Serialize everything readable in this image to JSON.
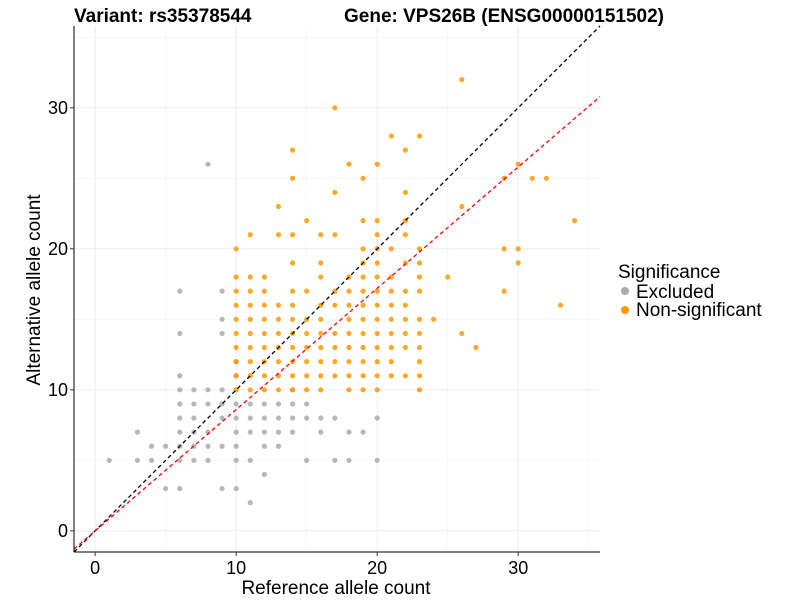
{
  "chart_data": {
    "type": "scatter",
    "title_left": "Variant: rs35378544",
    "title_right": "Gene: VPS26B (ENSG00000151502)",
    "xlabel": "Reference allele count",
    "ylabel": "Alternative allele count",
    "xlim": [
      -1.5,
      35.8
    ],
    "ylim": [
      -1.5,
      35.8
    ],
    "x_ticks": [
      0,
      10,
      20,
      30
    ],
    "y_ticks": [
      0,
      10,
      20,
      30
    ],
    "grid": true,
    "legend": {
      "title": "Significance",
      "position": "right",
      "entries": [
        {
          "label": "Excluded",
          "color": "#aaaaaa"
        },
        {
          "label": "Non-significant",
          "color": "#ff9900"
        }
      ]
    },
    "reference_lines": [
      {
        "name": "identity",
        "slope": 1.0,
        "intercept": 0,
        "color": "#000000",
        "style": "dashed"
      },
      {
        "name": "fit",
        "slope": 0.86,
        "intercept": 0,
        "color": "#ff0000",
        "style": "dashed"
      }
    ],
    "series": [
      {
        "name": "Excluded",
        "color": "#aaaaaa",
        "points": [
          [
            1,
            5
          ],
          [
            3,
            7
          ],
          [
            3,
            5
          ],
          [
            4,
            6
          ],
          [
            4,
            5
          ],
          [
            5,
            6
          ],
          [
            5,
            3
          ],
          [
            6,
            17
          ],
          [
            6,
            14
          ],
          [
            6,
            11
          ],
          [
            6,
            10
          ],
          [
            6,
            9
          ],
          [
            6,
            8
          ],
          [
            6,
            7
          ],
          [
            6,
            6
          ],
          [
            6,
            5
          ],
          [
            6,
            3
          ],
          [
            7,
            10
          ],
          [
            7,
            9
          ],
          [
            7,
            8
          ],
          [
            7,
            7
          ],
          [
            7,
            6
          ],
          [
            7,
            5
          ],
          [
            8,
            26
          ],
          [
            8,
            10
          ],
          [
            8,
            9
          ],
          [
            8,
            7
          ],
          [
            8,
            6
          ],
          [
            8,
            5
          ],
          [
            9,
            17
          ],
          [
            9,
            15
          ],
          [
            9,
            14
          ],
          [
            9,
            10
          ],
          [
            9,
            9
          ],
          [
            9,
            8
          ],
          [
            9,
            6
          ],
          [
            9,
            3
          ],
          [
            10,
            12
          ],
          [
            10,
            11
          ],
          [
            10,
            9
          ],
          [
            10,
            8
          ],
          [
            10,
            7
          ],
          [
            10,
            6
          ],
          [
            10,
            5
          ],
          [
            10,
            3
          ],
          [
            11,
            9
          ],
          [
            11,
            8
          ],
          [
            11,
            7
          ],
          [
            11,
            5
          ],
          [
            11,
            2
          ],
          [
            12,
            9
          ],
          [
            12,
            8
          ],
          [
            12,
            7
          ],
          [
            12,
            6
          ],
          [
            12,
            4
          ],
          [
            13,
            9
          ],
          [
            13,
            8
          ],
          [
            13,
            7
          ],
          [
            13,
            6
          ],
          [
            14,
            10
          ],
          [
            14,
            9
          ],
          [
            14,
            8
          ],
          [
            14,
            7
          ],
          [
            15,
            9
          ],
          [
            15,
            8
          ],
          [
            15,
            5
          ],
          [
            16,
            8
          ],
          [
            16,
            7
          ],
          [
            17,
            8
          ],
          [
            17,
            5
          ],
          [
            18,
            7
          ],
          [
            18,
            5
          ],
          [
            19,
            7
          ],
          [
            20,
            8
          ],
          [
            20,
            5
          ]
        ]
      },
      {
        "name": "Non-significant",
        "color": "#ff9900",
        "points": [
          [
            10,
            20
          ],
          [
            10,
            18
          ],
          [
            10,
            17
          ],
          [
            10,
            16
          ],
          [
            10,
            15
          ],
          [
            10,
            14
          ],
          [
            10,
            13
          ],
          [
            10,
            12
          ],
          [
            10,
            11
          ],
          [
            10,
            10
          ],
          [
            11,
            21
          ],
          [
            11,
            18
          ],
          [
            11,
            17
          ],
          [
            11,
            16
          ],
          [
            11,
            15
          ],
          [
            11,
            14
          ],
          [
            11,
            13
          ],
          [
            11,
            12
          ],
          [
            11,
            11
          ],
          [
            11,
            10
          ],
          [
            12,
            18
          ],
          [
            12,
            17
          ],
          [
            12,
            16
          ],
          [
            12,
            15
          ],
          [
            12,
            14
          ],
          [
            12,
            13
          ],
          [
            12,
            12
          ],
          [
            12,
            11
          ],
          [
            12,
            10
          ],
          [
            13,
            23
          ],
          [
            13,
            21
          ],
          [
            13,
            16
          ],
          [
            13,
            15
          ],
          [
            13,
            14
          ],
          [
            13,
            13
          ],
          [
            13,
            12
          ],
          [
            13,
            11
          ],
          [
            13,
            10
          ],
          [
            14,
            27
          ],
          [
            14,
            25
          ],
          [
            14,
            21
          ],
          [
            14,
            19
          ],
          [
            14,
            17
          ],
          [
            14,
            16
          ],
          [
            14,
            15
          ],
          [
            14,
            14
          ],
          [
            14,
            13
          ],
          [
            14,
            12
          ],
          [
            14,
            11
          ],
          [
            14,
            10
          ],
          [
            15,
            22
          ],
          [
            15,
            17
          ],
          [
            15,
            15
          ],
          [
            15,
            14
          ],
          [
            15,
            13
          ],
          [
            15,
            12
          ],
          [
            15,
            11
          ],
          [
            15,
            10
          ],
          [
            16,
            21
          ],
          [
            16,
            19
          ],
          [
            16,
            18
          ],
          [
            16,
            16
          ],
          [
            16,
            15
          ],
          [
            16,
            14
          ],
          [
            16,
            13
          ],
          [
            16,
            12
          ],
          [
            16,
            11
          ],
          [
            16,
            10
          ],
          [
            17,
            30
          ],
          [
            17,
            24
          ],
          [
            17,
            21
          ],
          [
            17,
            17
          ],
          [
            17,
            16
          ],
          [
            17,
            14
          ],
          [
            17,
            13
          ],
          [
            17,
            12
          ],
          [
            17,
            11
          ],
          [
            18,
            26
          ],
          [
            18,
            18
          ],
          [
            18,
            17
          ],
          [
            18,
            16
          ],
          [
            18,
            15
          ],
          [
            18,
            14
          ],
          [
            18,
            13
          ],
          [
            18,
            12
          ],
          [
            18,
            11
          ],
          [
            18,
            10
          ],
          [
            19,
            25
          ],
          [
            19,
            22
          ],
          [
            19,
            20
          ],
          [
            19,
            19
          ],
          [
            19,
            18
          ],
          [
            19,
            17
          ],
          [
            19,
            16
          ],
          [
            19,
            15
          ],
          [
            19,
            14
          ],
          [
            19,
            13
          ],
          [
            19,
            12
          ],
          [
            19,
            11
          ],
          [
            19,
            10
          ],
          [
            20,
            26
          ],
          [
            20,
            22
          ],
          [
            20,
            21
          ],
          [
            20,
            20
          ],
          [
            20,
            19
          ],
          [
            20,
            18
          ],
          [
            20,
            17
          ],
          [
            20,
            16
          ],
          [
            20,
            15
          ],
          [
            20,
            14
          ],
          [
            20,
            13
          ],
          [
            20,
            12
          ],
          [
            20,
            11
          ],
          [
            20,
            10
          ],
          [
            21,
            28
          ],
          [
            21,
            20
          ],
          [
            21,
            18
          ],
          [
            21,
            17
          ],
          [
            21,
            16
          ],
          [
            21,
            15
          ],
          [
            21,
            14
          ],
          [
            21,
            13
          ],
          [
            21,
            12
          ],
          [
            21,
            11
          ],
          [
            22,
            27
          ],
          [
            22,
            24
          ],
          [
            22,
            22
          ],
          [
            22,
            21
          ],
          [
            22,
            19
          ],
          [
            22,
            17
          ],
          [
            22,
            16
          ],
          [
            22,
            15
          ],
          [
            22,
            14
          ],
          [
            22,
            13
          ],
          [
            22,
            11
          ],
          [
            23,
            28
          ],
          [
            23,
            20
          ],
          [
            23,
            19
          ],
          [
            23,
            18
          ],
          [
            23,
            17
          ],
          [
            23,
            15
          ],
          [
            23,
            14
          ],
          [
            23,
            13
          ],
          [
            23,
            12
          ],
          [
            23,
            11
          ],
          [
            23,
            10
          ],
          [
            24,
            15
          ],
          [
            25,
            18
          ],
          [
            26,
            32
          ],
          [
            26,
            23
          ],
          [
            26,
            14
          ],
          [
            27,
            13
          ],
          [
            29,
            25
          ],
          [
            29,
            20
          ],
          [
            29,
            17
          ],
          [
            30,
            26
          ],
          [
            30,
            20
          ],
          [
            30,
            19
          ],
          [
            31,
            25
          ],
          [
            32,
            25
          ],
          [
            33,
            16
          ],
          [
            34,
            22
          ]
        ]
      }
    ]
  }
}
